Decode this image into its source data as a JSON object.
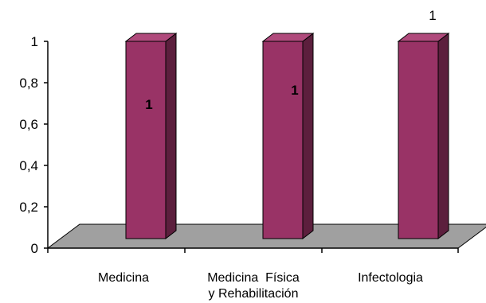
{
  "chart_data": {
    "type": "bar",
    "categories": [
      [
        "Medicina"
      ],
      [
        "Medicina  Física",
        "y Rehabilitación"
      ],
      [
        "Infectologia"
      ]
    ],
    "values": [
      1,
      1,
      1
    ],
    "data_labels": [
      "1",
      "1",
      "1"
    ],
    "yticks": [
      "0",
      "0,2",
      "0,4",
      "0,6",
      "0,8",
      "1"
    ],
    "ylim": [
      0,
      1
    ],
    "title": "",
    "xlabel": "",
    "ylabel": "",
    "three_d": true,
    "grid": false,
    "legend": "none",
    "colors": {
      "bar_front": "#993366",
      "bar_side": "#5c1f3d",
      "bar_top": "#b04a7c",
      "floor": "#a0a0a0"
    }
  }
}
